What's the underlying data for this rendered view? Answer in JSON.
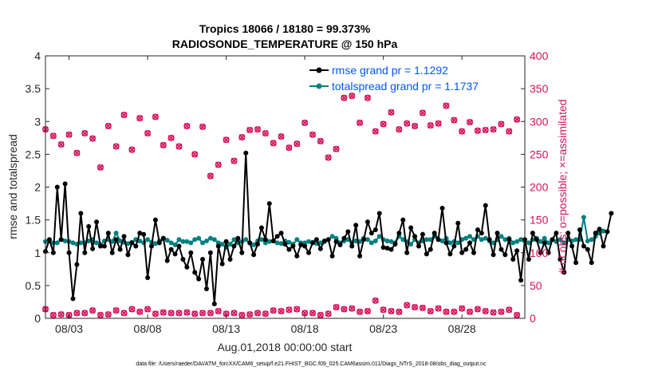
{
  "chart_data": {
    "type": "line",
    "title_line1": "Tropics 18066 / 18180 = 99.373%",
    "title_line2": "RADIOSONDE_TEMPERATURE @ 150 hPa",
    "xlabel": "Aug.01,2018 00:00:00 start",
    "ylabel_left": "rmse and totalspread",
    "ylabel_right": "# of obs: o=possible; ×=assimilated",
    "x_range_days": [
      1.5,
      32
    ],
    "ylim_left": [
      0,
      4
    ],
    "ylim_right": [
      0,
      400
    ],
    "left_ticks": [
      "0",
      "0.5",
      "1",
      "1.5",
      "2",
      "2.5",
      "3",
      "3.5",
      "4"
    ],
    "right_ticks": [
      "0",
      "50",
      "100",
      "150",
      "200",
      "250",
      "300",
      "350",
      "400"
    ],
    "x_tick_labels": [
      "08/03",
      "08/08",
      "08/13",
      "08/18",
      "08/23",
      "08/28"
    ],
    "x_tick_days": [
      3,
      8,
      13,
      18,
      23,
      28
    ],
    "grid": false,
    "footnote": "data file: /Users/raeder/DAI/ATM_forcXX/CAM6_setup/f.e21.FHIST_BGC.f09_025.CAM6assim.011/Diags_NTrS_2018-08/obs_diag_output.nc",
    "legend_position": "top-right",
    "series": [
      {
        "name": "rmse grand pr = 1.1292",
        "color": "#000000",
        "axis": "left",
        "start_day": 1.5,
        "step_days": 0.25,
        "values": [
          1.02,
          1.2,
          1.0,
          2.0,
          1.2,
          2.05,
          1.0,
          0.3,
          0.82,
          1.6,
          1.0,
          1.4,
          1.06,
          1.47,
          1.1,
          1.1,
          1.3,
          1.0,
          1.2,
          1.05,
          1.25,
          0.97,
          1.15,
          1.1,
          1.3,
          1.28,
          0.62,
          1.1,
          1.5,
          1.15,
          1.22,
          0.88,
          1.05,
          0.98,
          1.1,
          0.9,
          0.78,
          1.0,
          0.7,
          0.6,
          0.9,
          0.45,
          1.0,
          0.22,
          1.1,
          0.83,
          1.17,
          0.9,
          1.1,
          1.22,
          1.0,
          2.52,
          1.15,
          0.97,
          1.13,
          1.38,
          1.2,
          1.75,
          1.18,
          1.25,
          1.3,
          1.13,
          1.05,
          1.1,
          0.95,
          1.12,
          1.1,
          1.0,
          1.15,
          1.2,
          1.06,
          1.18,
          1.2,
          0.95,
          1.17,
          1.12,
          1.22,
          1.32,
          1.1,
          1.42,
          0.95,
          1.2,
          1.47,
          1.3,
          1.35,
          1.6,
          1.08,
          1.07,
          1.05,
          1.13,
          1.3,
          1.5,
          1.0,
          1.38,
          1.25,
          1.1,
          1.28,
          0.98,
          1.05,
          1.3,
          1.2,
          1.68,
          1.15,
          0.98,
          1.1,
          1.45,
          1.0,
          1.05,
          1.15,
          1.0,
          1.35,
          1.3,
          1.72,
          1.2,
          0.97,
          1.3,
          1.05,
          0.97,
          1.2,
          0.9,
          1.03,
          0.58,
          1.2,
          0.9,
          1.3,
          1.2,
          1.0,
          1.15,
          1.0,
          1.2,
          1.3,
          0.9,
          0.7,
          1.3,
          1.1,
          0.85,
          1.35,
          1.1,
          1.05,
          0.85,
          1.3,
          1.36,
          1.1,
          1.32,
          1.6
        ]
      },
      {
        "name": "totalspread grand pr = 1.1737",
        "color": "#008080",
        "axis": "left",
        "start_day": 1.5,
        "step_days": 0.25,
        "values": [
          1.17,
          1.18,
          1.15,
          1.15,
          1.2,
          1.18,
          1.17,
          1.15,
          1.13,
          1.15,
          1.15,
          1.18,
          1.2,
          1.15,
          1.12,
          1.18,
          1.2,
          1.17,
          1.3,
          1.18,
          1.16,
          1.14,
          1.16,
          1.2,
          1.18,
          1.15,
          1.2,
          1.16,
          1.14,
          1.18,
          1.22,
          1.19,
          1.15,
          1.12,
          1.2,
          1.17,
          1.17,
          1.15,
          1.2,
          1.22,
          1.15,
          1.18,
          1.22,
          1.2,
          1.15,
          1.13,
          1.08,
          1.13,
          1.2,
          1.15,
          1.17,
          1.2,
          1.15,
          1.12,
          1.18,
          1.2,
          1.15,
          1.17,
          1.18,
          1.15,
          1.14,
          1.18,
          1.16,
          1.13,
          1.2,
          1.15,
          1.15,
          1.17,
          1.16,
          1.14,
          1.15,
          1.17,
          1.2,
          1.25,
          1.22,
          1.15,
          1.18,
          1.2,
          1.15,
          1.18,
          1.17,
          1.22,
          1.2,
          1.15,
          1.18,
          1.25,
          1.2,
          1.18,
          1.17,
          1.15,
          1.25,
          1.2,
          1.17,
          1.13,
          1.2,
          1.15,
          1.18,
          1.2,
          1.2,
          1.25,
          1.2,
          1.18,
          1.22,
          1.15,
          1.17,
          1.15,
          1.2,
          1.22,
          1.25,
          1.2,
          1.25,
          1.2,
          1.22,
          1.18,
          1.15,
          1.2,
          1.25,
          1.2,
          1.22,
          1.15,
          1.17,
          1.2,
          1.18,
          1.15,
          1.2,
          1.22,
          1.17,
          1.22,
          1.15,
          1.2,
          1.17,
          1.2,
          1.15,
          1.2,
          1.18,
          1.2,
          1.2,
          1.54,
          1.18,
          1.2,
          1.25,
          1.3,
          1.33
        ]
      }
    ],
    "obs_possible": {
      "axis": "right",
      "color": "#d6105a",
      "days": [
        1.5,
        2.0,
        2.5,
        3.0,
        3.5,
        4.0,
        4.5,
        5.0,
        5.5,
        6.0,
        6.5,
        7.0,
        7.5,
        8.0,
        8.5,
        9.0,
        9.5,
        10.0,
        10.5,
        11.0,
        11.5,
        12.0,
        12.5,
        13.0,
        13.5,
        14.0,
        14.5,
        15.0,
        15.5,
        16.0,
        16.5,
        17.0,
        17.5,
        18.0,
        18.5,
        19.0,
        19.5,
        20.0,
        20.5,
        21.0,
        21.5,
        22.0,
        22.5,
        23.0,
        23.5,
        24.0,
        24.5,
        25.0,
        25.5,
        26.0,
        26.5,
        27.0,
        27.5,
        28.0,
        28.5,
        29.0,
        29.5,
        30.0,
        30.5,
        31.0,
        31.5
      ],
      "values": [
        288,
        278,
        265,
        280,
        252,
        282,
        274,
        230,
        293,
        262,
        310,
        257,
        305,
        282,
        307,
        264,
        275,
        262,
        293,
        250,
        292,
        217,
        234,
        272,
        240,
        276,
        287,
        288,
        282,
        267,
        277,
        260,
        266,
        298,
        280,
        270,
        245,
        258,
        336,
        339,
        298,
        336,
        285,
        296,
        314,
        288,
        297,
        293,
        313,
        294,
        297,
        324,
        302,
        285,
        299,
        286,
        287,
        288,
        296,
        285,
        303
      ]
    },
    "obs_assimilated": {
      "axis": "right",
      "color": "#d6105a",
      "days": [
        1.5,
        2.0,
        2.5,
        3.0,
        3.5,
        4.0,
        4.5,
        5.0,
        5.5,
        6.0,
        6.5,
        7.0,
        7.5,
        8.0,
        8.5,
        9.0,
        9.5,
        10.0,
        10.5,
        11.0,
        11.5,
        12.0,
        12.5,
        13.0,
        13.5,
        14.0,
        14.5,
        15.0,
        15.5,
        16.0,
        16.5,
        17.0,
        17.5,
        18.0,
        18.5,
        19.0,
        19.5,
        20.0,
        20.5,
        21.0,
        21.5,
        22.0,
        22.5,
        23.0,
        23.5,
        24.0,
        24.5,
        25.0,
        25.5,
        26.0,
        26.5,
        27.0,
        27.5,
        28.0,
        28.5,
        29.0,
        29.5,
        30.0,
        30.5,
        31.0,
        31.5
      ],
      "values": [
        14,
        5,
        6,
        5,
        8,
        8,
        12,
        5,
        6,
        12,
        8,
        14,
        10,
        14,
        7,
        9,
        8,
        8,
        9,
        7,
        8,
        8,
        11,
        7,
        8,
        5,
        6,
        8,
        7,
        12,
        11,
        13,
        14,
        8,
        8,
        5,
        7,
        17,
        14,
        15,
        10,
        11,
        27,
        13,
        11,
        10,
        20,
        17,
        16,
        11,
        15,
        10,
        10,
        15,
        10,
        14,
        11,
        9,
        10,
        13,
        5
      ]
    }
  }
}
